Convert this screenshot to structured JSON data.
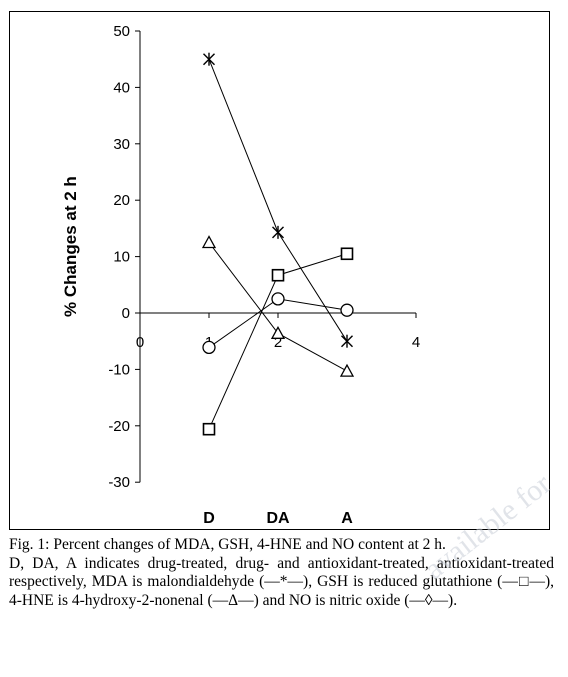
{
  "chart_data": {
    "type": "line",
    "ylabel": "% Changes at 2 h",
    "xlabel": "",
    "ylim": [
      -30,
      50
    ],
    "xlim": [
      0,
      4
    ],
    "y_ticks": [
      50,
      40,
      30,
      20,
      10,
      0,
      -10,
      -20,
      -30
    ],
    "x_ticks": [
      0,
      1,
      2,
      4
    ],
    "x_tick_labels": [
      "0",
      "1",
      "2",
      "4"
    ],
    "categories": [
      "D",
      "DA",
      "A"
    ],
    "category_x": [
      1,
      2,
      3
    ],
    "grid": false,
    "series": [
      {
        "name": "MDA",
        "marker": "asterisk",
        "x": [
          1,
          2,
          3
        ],
        "values": [
          45,
          14.3,
          -5
        ]
      },
      {
        "name": "GSH",
        "marker": "square",
        "x": [
          1,
          2,
          3
        ],
        "values": [
          -20.6,
          6.7,
          10.5
        ]
      },
      {
        "name": "4-HNE",
        "marker": "triangle",
        "x": [
          1,
          2,
          3
        ],
        "values": [
          12.5,
          -3.6,
          -10.3
        ]
      },
      {
        "name": "NO",
        "marker": "circle",
        "x": [
          1,
          2,
          3
        ],
        "values": [
          -6.1,
          2.5,
          0.5
        ]
      }
    ]
  },
  "caption": {
    "title": "Fig. 1: Percent changes of MDA, GSH, 4-HNE and NO content at 2 h.",
    "body": "D, DA, A indicates drug-treated, drug- and antioxidant-treated, antioxidant-treated respectively, MDA is malondialdehyde (—*—), GSH is reduced glutathione (—□—), 4-HNE is 4-hydroxy-2-nonenal (—Δ—) and NO is nitric oxide (—◊—)."
  },
  "watermark": "available for",
  "colors": {
    "ink": "#000000",
    "background": "#ffffff"
  }
}
